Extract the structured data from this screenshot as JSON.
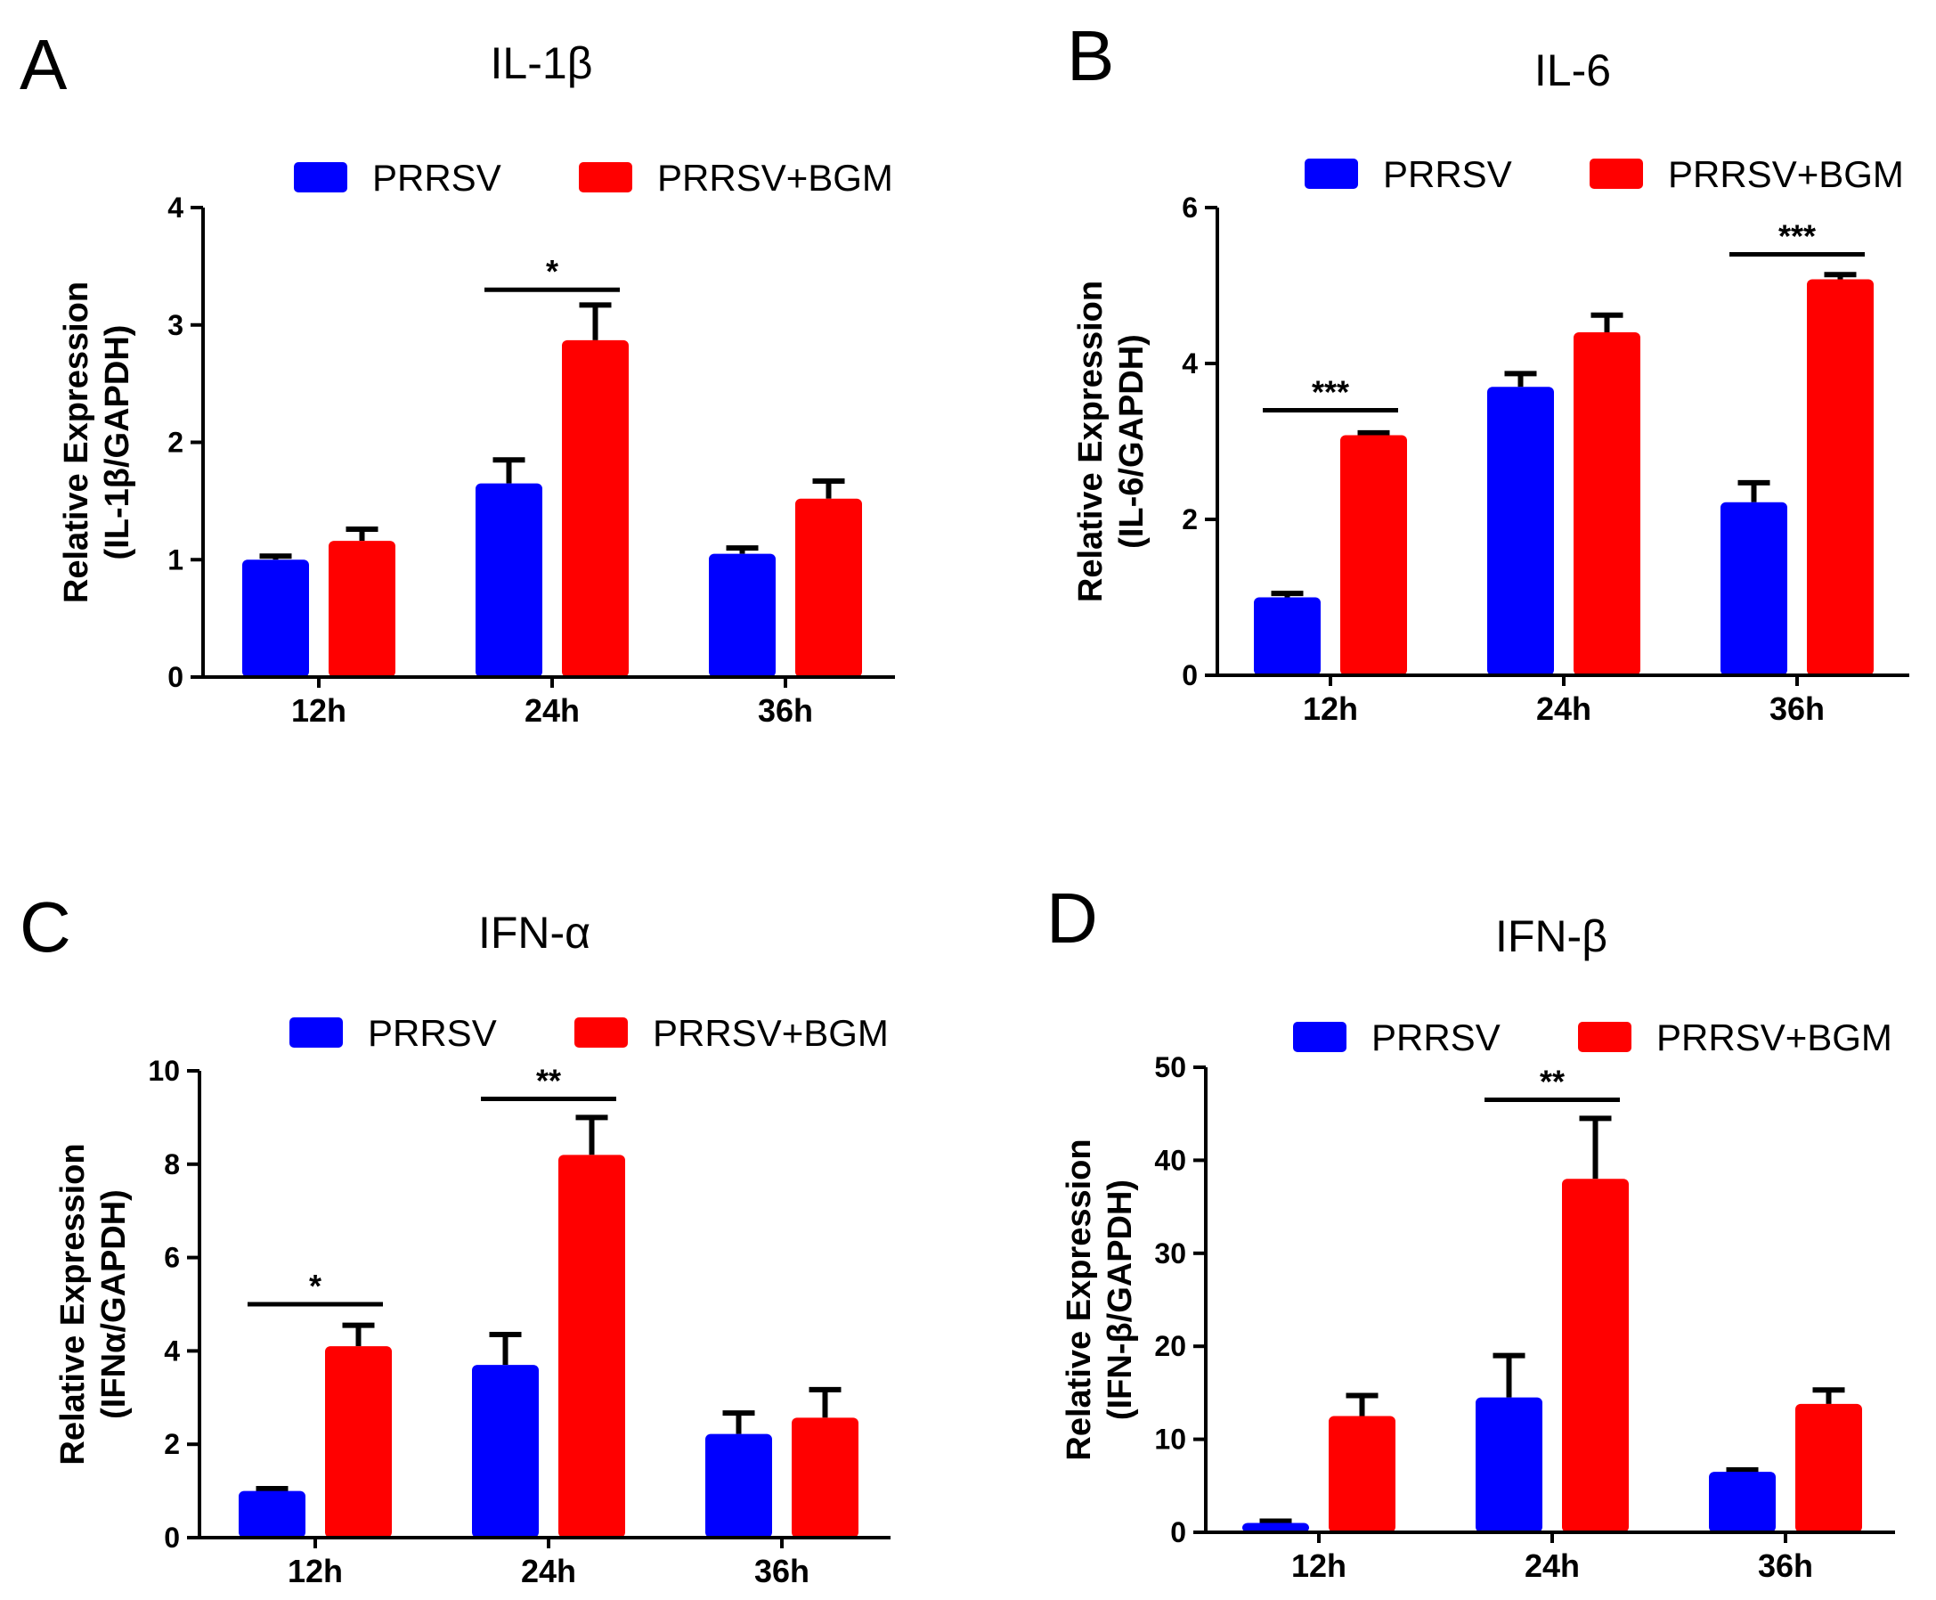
{
  "chart_data": [
    {
      "type": "bar",
      "panel": "A",
      "title": "IL-1β",
      "ylabel_line1": "Relative Expression",
      "ylabel_line2": "(IL-1β/GAPDH)",
      "categories": [
        "12h",
        "24h",
        "36h"
      ],
      "ylim": [
        0,
        4
      ],
      "yticks": [
        0,
        1,
        2,
        3,
        4
      ],
      "legend_position": "top",
      "series": [
        {
          "name": "PRRSV",
          "color": "#0000ff",
          "values": [
            1.0,
            1.65,
            1.05
          ],
          "errors": [
            0.03,
            0.2,
            0.05
          ]
        },
        {
          "name": "PRRSV+BGM",
          "color": "#ff0000",
          "values": [
            1.16,
            2.87,
            1.52
          ],
          "errors": [
            0.1,
            0.3,
            0.15
          ]
        }
      ],
      "significance": [
        {
          "category_index": 1,
          "label": "*",
          "y": 3.3
        }
      ]
    },
    {
      "type": "bar",
      "panel": "B",
      "title": "IL-6",
      "ylabel_line1": "Relative Expression",
      "ylabel_line2": "(IL-6/GAPDH)",
      "categories": [
        "12h",
        "24h",
        "36h"
      ],
      "ylim": [
        0,
        6
      ],
      "yticks": [
        0,
        2,
        4,
        6
      ],
      "legend_position": "top",
      "series": [
        {
          "name": "PRRSV",
          "color": "#0000ff",
          "values": [
            1.0,
            3.7,
            2.22
          ],
          "errors": [
            0.05,
            0.17,
            0.25
          ]
        },
        {
          "name": "PRRSV+BGM",
          "color": "#ff0000",
          "values": [
            3.08,
            4.4,
            5.08
          ],
          "errors": [
            0.03,
            0.22,
            0.06
          ]
        }
      ],
      "significance": [
        {
          "category_index": 0,
          "label": "***",
          "y": 3.4
        },
        {
          "category_index": 2,
          "label": "***",
          "y": 5.4
        }
      ]
    },
    {
      "type": "bar",
      "panel": "C",
      "title": "IFN-α",
      "ylabel_line1": "Relative Expression",
      "ylabel_line2": "(IFNα/GAPDH)",
      "categories": [
        "12h",
        "24h",
        "36h"
      ],
      "ylim": [
        0,
        10
      ],
      "yticks": [
        0,
        2,
        4,
        6,
        8,
        10
      ],
      "legend_position": "top",
      "series": [
        {
          "name": "PRRSV",
          "color": "#0000ff",
          "values": [
            1.0,
            3.7,
            2.22
          ],
          "errors": [
            0.05,
            0.65,
            0.45
          ]
        },
        {
          "name": "PRRSV+BGM",
          "color": "#ff0000",
          "values": [
            4.1,
            8.2,
            2.57
          ],
          "errors": [
            0.45,
            0.8,
            0.6
          ]
        }
      ],
      "significance": [
        {
          "category_index": 0,
          "label": "*",
          "y": 5.0
        },
        {
          "category_index": 1,
          "label": "**",
          "y": 9.4
        }
      ]
    },
    {
      "type": "bar",
      "panel": "D",
      "title": "IFN-β",
      "ylabel_line1": "Relative Expression",
      "ylabel_line2": "(IFN-β/GAPDH)",
      "categories": [
        "12h",
        "24h",
        "36h"
      ],
      "ylim": [
        0,
        50
      ],
      "yticks": [
        0,
        10,
        20,
        30,
        40,
        50
      ],
      "legend_position": "top",
      "series": [
        {
          "name": "PRRSV",
          "color": "#0000ff",
          "values": [
            1.0,
            14.5,
            6.5
          ],
          "errors": [
            0.2,
            4.5,
            0.2
          ]
        },
        {
          "name": "PRRSV+BGM",
          "color": "#ff0000",
          "values": [
            12.5,
            38.0,
            13.8
          ],
          "errors": [
            2.2,
            6.5,
            1.5
          ]
        }
      ],
      "significance": [
        {
          "category_index": 1,
          "label": "**",
          "y": 46.5
        }
      ]
    }
  ]
}
